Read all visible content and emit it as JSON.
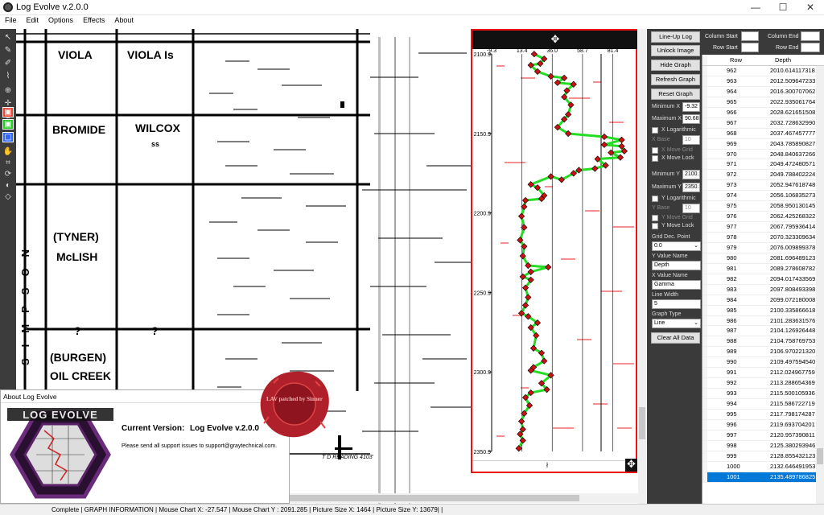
{
  "window": {
    "title": "Log Evolve v.2.0.0",
    "minimize": "—",
    "maximize": "☐",
    "close": "✕"
  },
  "menu": [
    "File",
    "Edit",
    "Options",
    "Effects",
    "About"
  ],
  "log_image": {
    "labels": [
      "VIOLA",
      "VIOLA Is",
      "BROMIDE",
      "WILCOX",
      "ss",
      "(TYNER)",
      "McLISH",
      "?",
      "?",
      "(BURGEN)",
      "OIL CREEK",
      "SIMPSON",
      "T D READING 4103'"
    ]
  },
  "graph": {
    "x_ticks": [
      "-9.3",
      "13.4",
      "36.0",
      "58.7",
      "81.4"
    ],
    "y_ticks": [
      "2100.9",
      "2150.9",
      "2200.9",
      "2250.9",
      "2300.9",
      "2350.9"
    ],
    "move_handle": "✥",
    "foot_mark": "ł"
  },
  "chart_data": {
    "type": "line",
    "xlim": [
      -9.32,
      90.68
    ],
    "ylim": [
      2100.9,
      2350.9
    ],
    "x_name": "Gamma",
    "y_name": "Depth",
    "points": [
      [
        22.5,
        2101
      ],
      [
        30,
        2104
      ],
      [
        27,
        2107
      ],
      [
        20,
        2108
      ],
      [
        25,
        2112
      ],
      [
        35,
        2115
      ],
      [
        45,
        2116
      ],
      [
        40,
        2119
      ],
      [
        52,
        2120
      ],
      [
        47,
        2124
      ],
      [
        45,
        2128
      ],
      [
        50,
        2133
      ],
      [
        48,
        2139
      ],
      [
        45,
        2142
      ],
      [
        40,
        2147
      ],
      [
        48,
        2151
      ],
      [
        75,
        2153
      ],
      [
        88,
        2155
      ],
      [
        75,
        2158
      ],
      [
        88,
        2159
      ],
      [
        90,
        2162
      ],
      [
        80,
        2163
      ],
      [
        87,
        2166
      ],
      [
        70,
        2167
      ],
      [
        76,
        2171
      ],
      [
        68,
        2173
      ],
      [
        56,
        2174
      ],
      [
        52,
        2176
      ],
      [
        43,
        2180
      ],
      [
        35,
        2178
      ],
      [
        20,
        2183
      ],
      [
        25,
        2185
      ],
      [
        30,
        2190
      ],
      [
        28,
        2192
      ],
      [
        16,
        2193
      ],
      [
        15,
        2197
      ],
      [
        13,
        2203
      ],
      [
        15,
        2210
      ],
      [
        12,
        2218
      ],
      [
        15,
        2222
      ],
      [
        14,
        2228
      ],
      [
        18,
        2234
      ],
      [
        33,
        2235
      ],
      [
        20,
        2238
      ],
      [
        14,
        2241
      ],
      [
        20,
        2243
      ],
      [
        16,
        2248
      ],
      [
        18,
        2254
      ],
      [
        16,
        2259
      ],
      [
        13,
        2264
      ],
      [
        18,
        2266
      ],
      [
        25,
        2270
      ],
      [
        20,
        2273
      ],
      [
        24,
        2278
      ],
      [
        22,
        2286
      ],
      [
        28,
        2289
      ],
      [
        30,
        2294
      ],
      [
        22,
        2298
      ],
      [
        20,
        2300
      ],
      [
        35,
        2303
      ],
      [
        28,
        2308
      ],
      [
        32,
        2312
      ],
      [
        20,
        2314
      ],
      [
        16,
        2317
      ],
      [
        19,
        2322
      ],
      [
        15,
        2327
      ],
      [
        13,
        2332
      ],
      [
        14,
        2337
      ],
      [
        12,
        2340
      ],
      [
        14,
        2344
      ],
      [
        11,
        2349
      ]
    ]
  },
  "controls": {
    "lineup": "Line-Up Log",
    "unlock": "Unlock Image",
    "hide": "Hide Graph",
    "refresh": "Refresh Graph",
    "reset": "Reset Graph",
    "minx_label": "Minimum X",
    "minx": "-9.32",
    "maxx_label": "Maximum X",
    "maxx": "90.68",
    "xlog": "X Logarithmic",
    "xbase_label": "X Base",
    "xbase": "10",
    "xmovegrid": "X Move Grid",
    "xmovelock": "X Move Lock",
    "miny_label": "Minimum Y",
    "miny": "2100.9",
    "maxy_label": "Maximum Y",
    "maxy": "2350.9",
    "ylog": "Y Logarithmic",
    "ybase_label": "Y Base",
    "ybase": "10",
    "ymovegrid": "Y Move Grid",
    "ymovelock": "Y Move Lock",
    "griddec_label": "Grid Dec. Point",
    "griddec": "0.0",
    "yname_label": "Y Value Name",
    "yname": "Depth",
    "xname_label": "X Value Name",
    "xname": "Gamma",
    "linewidth_label": "Line Width",
    "linewidth": "5",
    "graphtype_label": "Graph Type",
    "graphtype": "Line",
    "clear": "Clear All Data"
  },
  "range": {
    "col_start": "Column Start",
    "col_end": "Column End",
    "row_start": "Row Start",
    "row_end": "Row End"
  },
  "table": {
    "headers": [
      "Row",
      "Depth"
    ],
    "rows": [
      [
        "962",
        "2010.614117318"
      ],
      [
        "963",
        "2012.509647233"
      ],
      [
        "964",
        "2016.300707062"
      ],
      [
        "965",
        "2022.935061764"
      ],
      [
        "966",
        "2028.621651508"
      ],
      [
        "967",
        "2032.728632990"
      ],
      [
        "968",
        "2037.467457777"
      ],
      [
        "969",
        "2043.785890827"
      ],
      [
        "970",
        "2048.840637266"
      ],
      [
        "971",
        "2049.472480571"
      ],
      [
        "972",
        "2049.788402224"
      ],
      [
        "973",
        "2052.947618748"
      ],
      [
        "974",
        "2056.106835273"
      ],
      [
        "975",
        "2058.950130145"
      ],
      [
        "976",
        "2062.425268322"
      ],
      [
        "977",
        "2067.795936414"
      ],
      [
        "978",
        "2070.323309634"
      ],
      [
        "979",
        "2076.009899378"
      ],
      [
        "980",
        "2081.696489123"
      ],
      [
        "981",
        "2089.278608782"
      ],
      [
        "982",
        "2094.017433569"
      ],
      [
        "983",
        "2097.808493398"
      ],
      [
        "984",
        "2099.072180008"
      ],
      [
        "985",
        "2100.335866618"
      ],
      [
        "986",
        "2101.283631576"
      ],
      [
        "987",
        "2104.126926448"
      ],
      [
        "988",
        "2104.758769753"
      ],
      [
        "989",
        "2106.970221320"
      ],
      [
        "990",
        "2109.497594540"
      ],
      [
        "991",
        "2112.024967759"
      ],
      [
        "992",
        "2113.288654369"
      ],
      [
        "993",
        "2115.500105936"
      ],
      [
        "994",
        "2115.586722719"
      ],
      [
        "995",
        "2117.798174287"
      ],
      [
        "996",
        "2119.693704201"
      ],
      [
        "997",
        "2120.957390811"
      ],
      [
        "998",
        "2125.380293946"
      ],
      [
        "999",
        "2128.855432123"
      ],
      [
        "1000",
        "2132.646491953"
      ],
      [
        "1001",
        "2135.489786825"
      ]
    ]
  },
  "about": {
    "title": "About Log Evolve",
    "logo_text": "LOG EVOLVE",
    "version_label": "Current Version:",
    "version": "Log Evolve v.2.0.0",
    "support": "Please send all support issues to support@graytechnical.com.",
    "seal_text": "LAV patched by Sinner"
  },
  "status": {
    "text": "Complete  |  GRAPH INFORMATION  |  Mouse Chart X: -27.547  |  Mouse Chart Y : 2091.285  |  Picture Size X: 1464  |  Picture Size Y: 13679|  |"
  },
  "colors": {
    "graph_line": "#22dd22",
    "marker": "#cc1111",
    "graph_border": "#ee1111",
    "selection": "#0078d7"
  }
}
